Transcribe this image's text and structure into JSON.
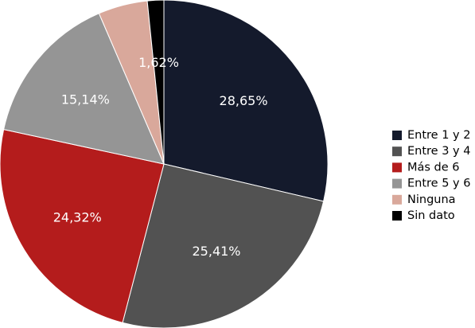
{
  "chart_data": {
    "type": "pie",
    "title": "",
    "slices": [
      {
        "label": "Entre 1 y 2",
        "value": 28.65,
        "display": "28,65%",
        "color": "#141a2c"
      },
      {
        "label": "Entre 3 y 4",
        "value": 25.41,
        "display": "25,41%",
        "color": "#525252"
      },
      {
        "label": "Más de 6",
        "value": 24.32,
        "display": "24,32%",
        "color": "#b41c1c"
      },
      {
        "label": "Entre 5 y 6",
        "value": 15.14,
        "display": "15,14%",
        "color": "#959595"
      },
      {
        "label": "Ninguna",
        "value": 4.86,
        "display": "",
        "color": "#d9a89b"
      },
      {
        "label": "Sin dato",
        "value": 1.62,
        "display": "1,62%",
        "color": "#000000"
      }
    ],
    "legend_placement": "right",
    "start_direction": "top",
    "direction": "clockwise"
  }
}
